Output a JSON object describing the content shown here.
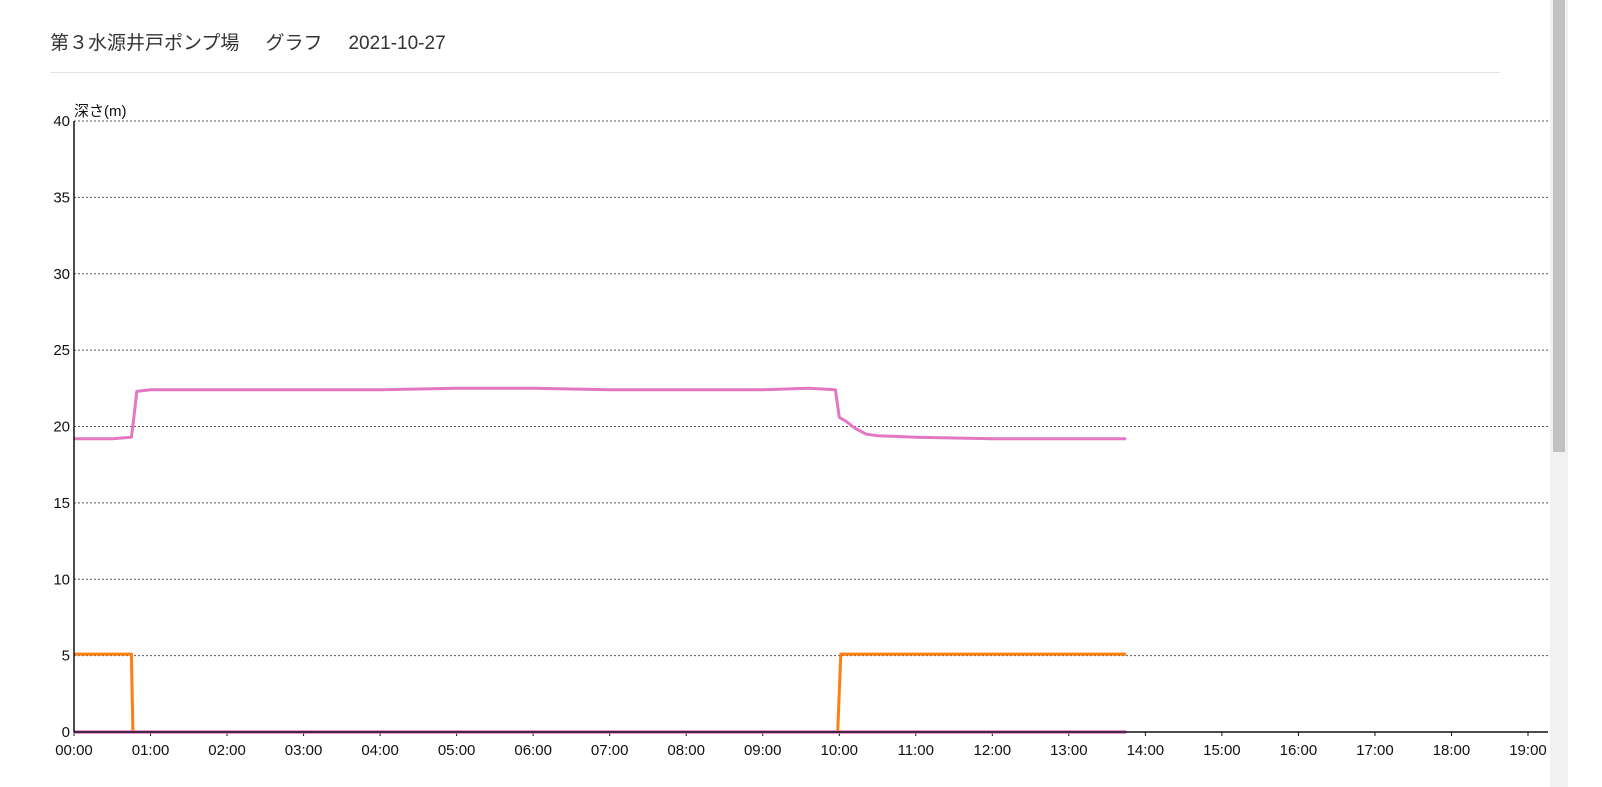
{
  "header": {
    "title": "第３水源井戸ポンプ場",
    "subtitle": "グラフ",
    "date": "2021-10-27"
  },
  "chart_data": {
    "type": "line",
    "ylabel": "深さ(m)",
    "ylim": [
      0,
      40
    ],
    "yticks": [
      0,
      5,
      10,
      15,
      20,
      25,
      30,
      35,
      40
    ],
    "xlim": [
      0,
      19
    ],
    "xticks": [
      "00:00",
      "01:00",
      "02:00",
      "03:00",
      "04:00",
      "05:00",
      "06:00",
      "07:00",
      "08:00",
      "09:00",
      "10:00",
      "11:00",
      "12:00",
      "13:00",
      "14:00",
      "15:00",
      "16:00",
      "17:00",
      "18:00",
      "19:00"
    ],
    "grid": "horizontal-dotted",
    "colors": {
      "depth": "#e377c2",
      "pump": "#ff7f0e",
      "baseline": "#e377c2"
    },
    "series": [
      {
        "key": "depth",
        "x": [
          0,
          0.5,
          0.75,
          0.78,
          0.82,
          1.0,
          2.0,
          3.0,
          4.0,
          5.0,
          6.0,
          7.0,
          8.0,
          9.0,
          9.6,
          9.95,
          10.0,
          10.1,
          10.2,
          10.35,
          10.5,
          11.0,
          12.0,
          12.5,
          13.0,
          13.5,
          13.75
        ],
        "values": [
          19.2,
          19.2,
          19.3,
          20.5,
          22.3,
          22.4,
          22.4,
          22.4,
          22.4,
          22.5,
          22.5,
          22.4,
          22.4,
          22.4,
          22.5,
          22.4,
          20.6,
          20.3,
          19.9,
          19.5,
          19.4,
          19.3,
          19.2,
          19.2,
          19.2,
          19.2,
          19.2
        ]
      },
      {
        "key": "pump",
        "x": [
          0,
          0.75,
          0.77,
          9.98,
          10.02,
          13.75
        ],
        "values": [
          5.1,
          5.1,
          0,
          0,
          5.1,
          5.1
        ]
      },
      {
        "key": "baseline",
        "x": [
          0,
          13.75
        ],
        "values": [
          0,
          0
        ]
      }
    ]
  }
}
